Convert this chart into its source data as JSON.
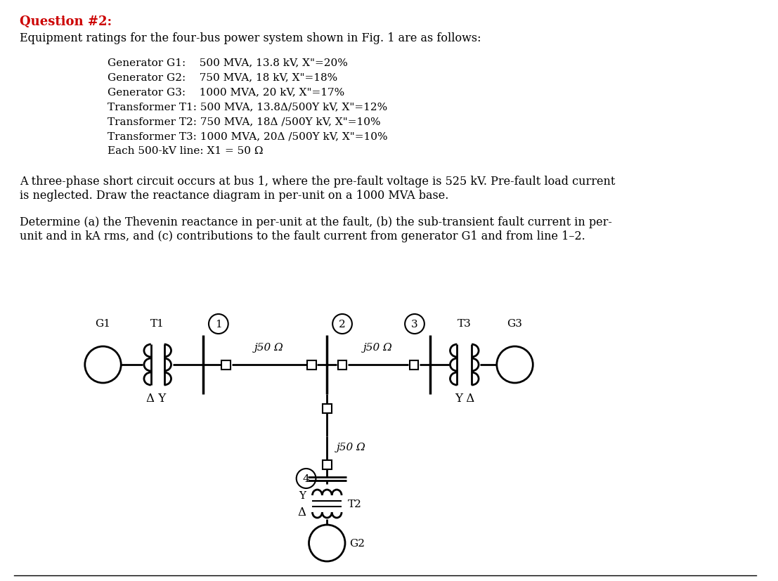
{
  "bg_color": "#ffffff",
  "text_color": "#000000",
  "title_color": "#cc0000",
  "title": "Question #2:",
  "subtitle": "Equipment ratings for the four-bus power system shown in Fig. 1 are as follows:",
  "eq_line1": "Generator G1:    500 MVA, 13.8 kV, X\"=20%",
  "eq_line2": "Generator G2:    750 MVA, 18 kV, X\"=18%",
  "eq_line3": "Generator G3:    1000 MVA, 20 kV, X\"=17%",
  "eq_line4": "Transformer T1: 500 MVA, 13.8Δ/500Y kV, X\"=12%",
  "eq_line5": "Transformer T2: 750 MVA, 18Δ /500Y kV, X\"=10%",
  "eq_line6": "Transformer T3: 1000 MVA, 20Δ /500Y kV, X\"=10%",
  "eq_line7": "Each 500-kV line: X1 = 50 Ω",
  "para1_line1": "A three-phase short circuit occurs at bus 1, where the pre-fault voltage is 525 kV. Pre-fault load current",
  "para1_line2": "is neglected. Draw the reactance diagram in per-unit on a 1000 MVA base.",
  "para2_line1": "Determine (a) the Thevenin reactance in per-unit at the fault, (b) the sub-transient fault current in per-",
  "para2_line2": "unit and in kA rms, and (c) contributions to the fault current from generator G1 and from line 1–2.",
  "j50": "j50 Ω",
  "label_G1": "G1",
  "label_G2": "G2",
  "label_G3": "G3",
  "label_T1": "T1",
  "label_T2": "T2",
  "label_T3": "T3",
  "label_DY1": "Δ Y",
  "label_YD3": "Y Δ",
  "label_Y_T2": "Y",
  "label_D_T2": "Δ"
}
